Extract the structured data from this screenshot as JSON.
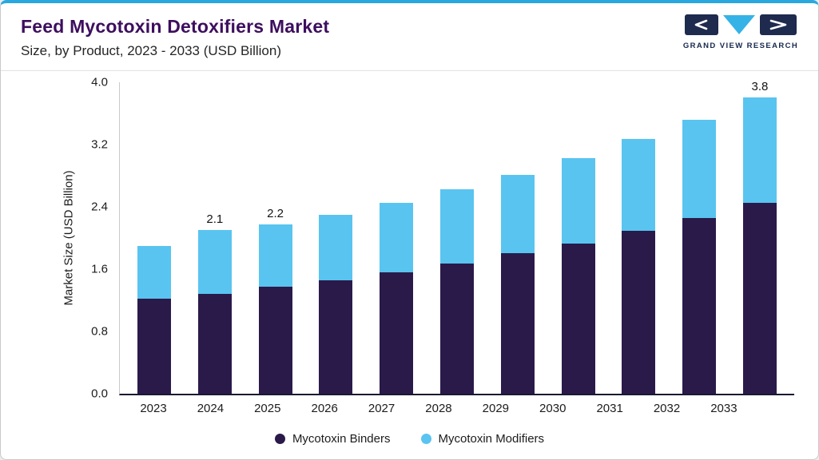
{
  "header": {
    "title": "Feed Mycotoxin Detoxifiers Market",
    "subtitle": "Size, by Product, 2023 - 2033 (USD Billion)",
    "logo_text": "GRAND VIEW RESEARCH"
  },
  "chart_data": {
    "type": "bar",
    "stacked": true,
    "title": "Feed Mycotoxin Detoxifiers Market Size, by Product, 2023 - 2033 (USD Billion)",
    "xlabel": "",
    "ylabel": "Market Size (USD Billion)",
    "ylim": [
      0,
      4.0
    ],
    "yticks": [
      0.0,
      0.8,
      1.6,
      2.4,
      3.2,
      4.0
    ],
    "grid": false,
    "legend_position": "bottom",
    "categories": [
      "2023",
      "2024",
      "2025",
      "2026",
      "2027",
      "2028",
      "2029",
      "2030",
      "2031",
      "2032",
      "2033"
    ],
    "series": [
      {
        "name": "Mycotoxin Binders",
        "color": "#2a1a4a",
        "values": [
          1.22,
          1.28,
          1.37,
          1.46,
          1.56,
          1.67,
          1.8,
          1.93,
          2.09,
          2.26,
          2.45
        ]
      },
      {
        "name": "Mycotoxin Modifiers",
        "color": "#59c4f0",
        "values": [
          0.68,
          0.82,
          0.8,
          0.84,
          0.89,
          0.95,
          1.01,
          1.1,
          1.18,
          1.26,
          1.35
        ]
      }
    ],
    "bar_labels": [
      "",
      "2.1",
      "2.2",
      "",
      "",
      "",
      "",
      "",
      "",
      "",
      "3.8"
    ]
  },
  "colors": {
    "accent_top_bar": "#29a8e0",
    "title_text": "#3d0e5e",
    "binders": "#2a1a4a",
    "modifiers": "#59c4f0",
    "logo_navy": "#1e2a4e",
    "logo_cyan": "#35b3e6"
  }
}
